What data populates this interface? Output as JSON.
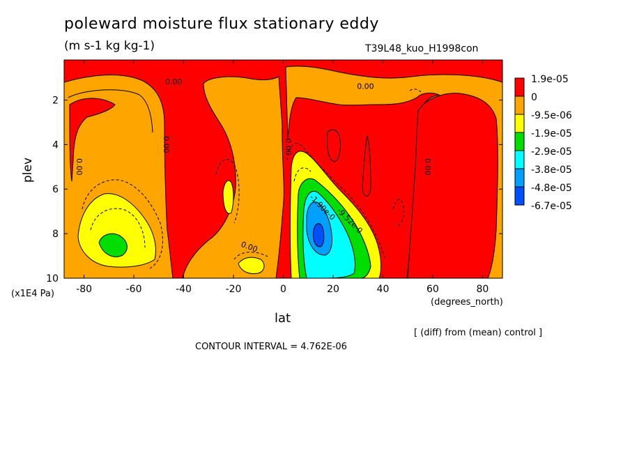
{
  "header": {
    "title": "poleward moisture flux stationary eddy",
    "units": "(m s-1 kg kg-1)",
    "run": "T39L48_kuo_H1998con"
  },
  "footer": {
    "diff_note": "[ (diff) from (mean) control ]",
    "contour_interval": "CONTOUR INTERVAL = 4.762E-06"
  },
  "chart_data": {
    "type": "heatmap",
    "title": "poleward moisture flux stationary eddy",
    "xlabel": "lat",
    "x_unit": "(degrees_north)",
    "ylabel": "plev",
    "y_unit": "(x1E4 Pa)",
    "xlim": [
      -88,
      88
    ],
    "ylim": [
      10,
      0.2
    ],
    "x_ticks": [
      -80,
      -60,
      -40,
      -20,
      0,
      20,
      40,
      60,
      80
    ],
    "x_tick_labels": [
      "-80",
      "-60",
      "-40",
      "-20",
      "0",
      "20",
      "40",
      "60",
      "80"
    ],
    "y_ticks": [
      2,
      4,
      6,
      8,
      10
    ],
    "y_tick_labels": [
      "2",
      "4",
      "6",
      "8",
      "10"
    ],
    "levels": [
      {
        "label": "1.9e-05",
        "color": "#ff0000"
      },
      {
        "label": "0",
        "color": "#ffa500"
      },
      {
        "label": "-9.5e-06",
        "color": "#ffff00"
      },
      {
        "label": "-1.9e-05",
        "color": "#00dd00"
      },
      {
        "label": "-2.9e-05",
        "color": "#00ffff"
      },
      {
        "label": "-3.8e-05",
        "color": "#00a0ff"
      },
      {
        "label": "-4.8e-05",
        "color": "#0050ff"
      },
      {
        "label": "-6.7e-05",
        "color": ""
      }
    ],
    "contour_labels": [
      {
        "text": "0.00",
        "lat": -44,
        "plev": 1.3,
        "rotate": 0
      },
      {
        "text": "0.00",
        "lat": 33,
        "plev": 1.5,
        "rotate": 0
      },
      {
        "text": "0.00",
        "lat": -83,
        "plev": 5.0,
        "rotate": 90
      },
      {
        "text": "0.00",
        "lat": -48,
        "plev": 4.0,
        "rotate": 90
      },
      {
        "text": "0.00",
        "lat": 1,
        "plev": 4.1,
        "rotate": 90
      },
      {
        "text": "0.00",
        "lat": 57,
        "plev": 5.0,
        "rotate": 90
      },
      {
        "text": "0.00",
        "lat": -14,
        "plev": 8.7,
        "rotate": 20
      },
      {
        "text": "-1.90e-0",
        "lat": 15,
        "plev": 6.9,
        "rotate": 45
      },
      {
        "text": "-9.52e-0",
        "lat": 26,
        "plev": 7.5,
        "rotate": 45
      }
    ],
    "features": [
      {
        "region": "southern subtropics",
        "lat": -72,
        "plev": 8.3,
        "min_level": "-1.9e-05"
      },
      {
        "region": "northern subtropics",
        "lat": 14,
        "plev": 8.0,
        "min_level": "-4.8e-05"
      },
      {
        "region": "southern midlatitudes",
        "lat": -45,
        "plev": 5.0,
        "max_level": "1.9e-05"
      },
      {
        "region": "equator",
        "lat": 0,
        "plev": 5.5,
        "max_level": "1.9e-05"
      },
      {
        "region": "northern high latitudes",
        "lat": 68,
        "plev": 6.0,
        "max_level": "1.9e-05"
      }
    ],
    "grid": false
  }
}
